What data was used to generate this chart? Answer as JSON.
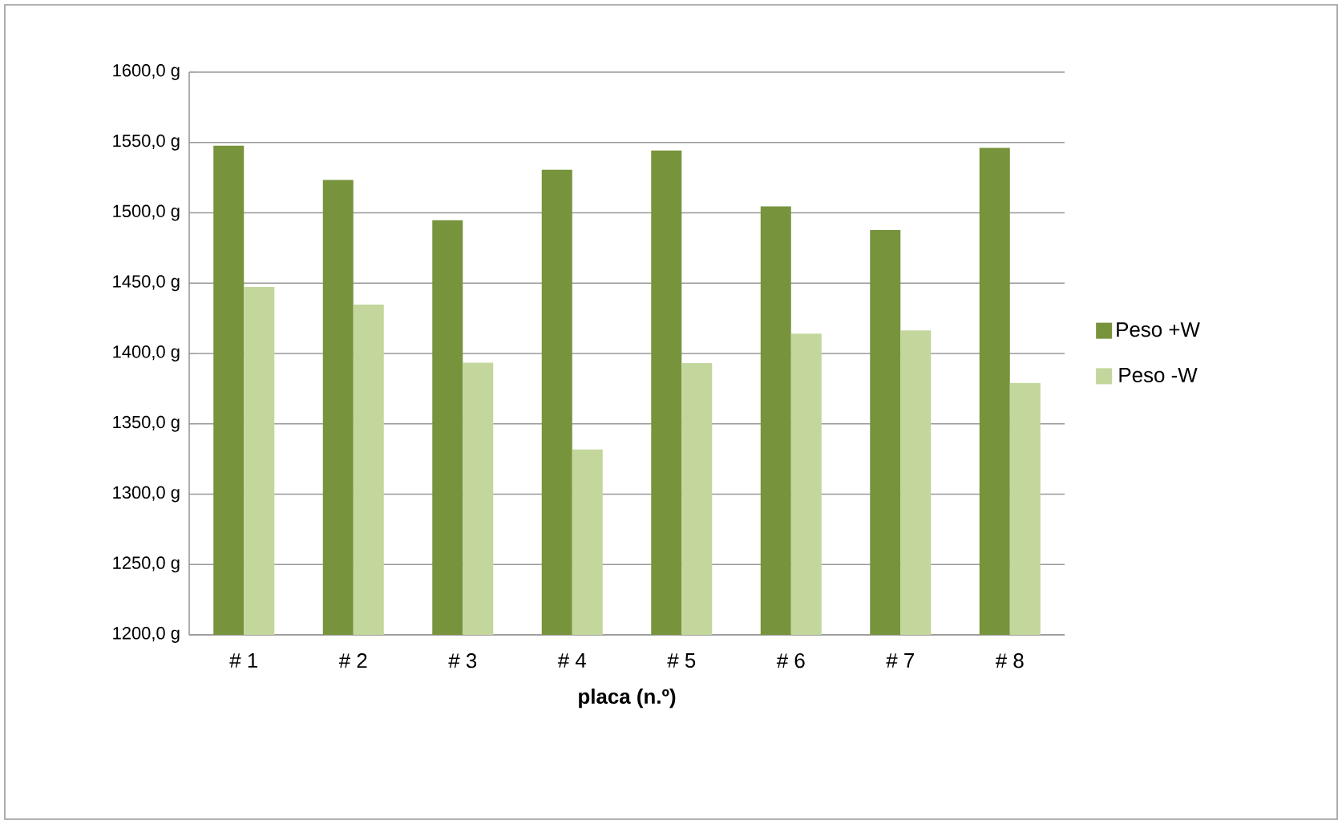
{
  "chart_data": {
    "type": "bar",
    "xlabel": "placa (n.º)",
    "categories": [
      "# 1",
      "# 2",
      "# 3",
      "# 4",
      "# 5",
      "# 6",
      "# 7",
      "# 8"
    ],
    "series": [
      {
        "name": "Peso +W",
        "color": "#77933c",
        "values": [
          1547.7,
          1523.4,
          1494.7,
          1530.6,
          1544.3,
          1504.6,
          1487.8,
          1546.2
        ]
      },
      {
        "name": "Peso -W",
        "color": "#c3d69b",
        "values": [
          1447.3,
          1434.8,
          1393.5,
          1331.7,
          1393.2,
          1414.1,
          1416.4,
          1379.1
        ]
      }
    ],
    "ylim": [
      1200,
      1600
    ],
    "yticks": [
      {
        "value": 1200,
        "label": "1200,0 g"
      },
      {
        "value": 1250,
        "label": "1250,0 g"
      },
      {
        "value": 1300,
        "label": "1300,0 g"
      },
      {
        "value": 1350,
        "label": "1350,0 g"
      },
      {
        "value": 1400,
        "label": "1400,0 g"
      },
      {
        "value": 1450,
        "label": "1450,0 g"
      },
      {
        "value": 1500,
        "label": "1500,0 g"
      },
      {
        "value": 1550,
        "label": "1550,0 g"
      },
      {
        "value": 1600,
        "label": "1600,0 g"
      }
    ],
    "grid": "y",
    "legend": "right"
  }
}
